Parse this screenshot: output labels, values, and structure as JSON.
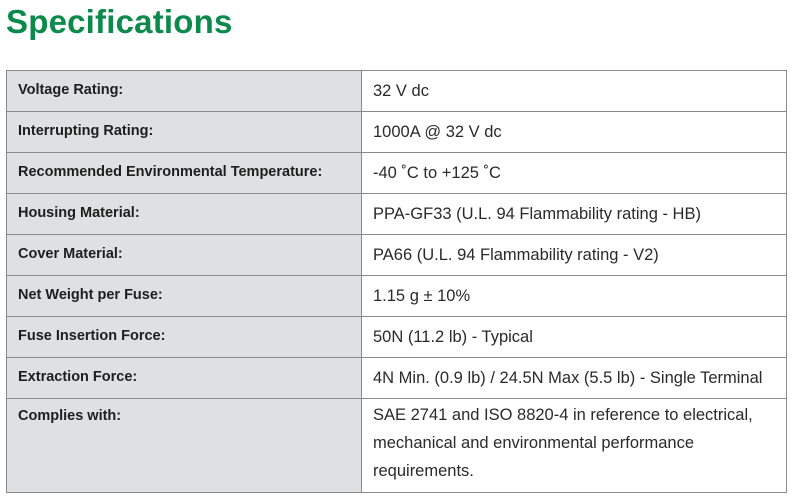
{
  "header": {
    "title": "Specifications"
  },
  "specs": [
    {
      "label": "Voltage Rating:",
      "value": "32 V dc"
    },
    {
      "label": "Interrupting Rating:",
      "value": "1000A @ 32 V dc"
    },
    {
      "label": "Recommended Environmental Temperature:",
      "value": "-40 ˚C to +125 ˚C"
    },
    {
      "label": "Housing Material:",
      "value": "PPA-GF33 (U.L. 94 Flammability rating - HB)"
    },
    {
      "label": "Cover Material:",
      "value": "PA66 (U.L. 94 Flammability rating - V2)"
    },
    {
      "label": "Net Weight per Fuse:",
      "value": "1.15 g ± 10%"
    },
    {
      "label": "Fuse Insertion Force:",
      "value": "50N (11.2 lb) - Typical"
    },
    {
      "label": "Extraction Force:",
      "value": "4N Min. (0.9 lb) / 24.5N Max (5.5 lb) - Single Terminal"
    },
    {
      "label": "Complies with:",
      "value": "SAE 2741 and ISO 8820-4 in reference to electrical, mechanical and environmental performance requirements."
    }
  ],
  "colors": {
    "title": "#0b8a4b",
    "label_background": "#dfe0e1",
    "border": "#8a8a8a"
  }
}
